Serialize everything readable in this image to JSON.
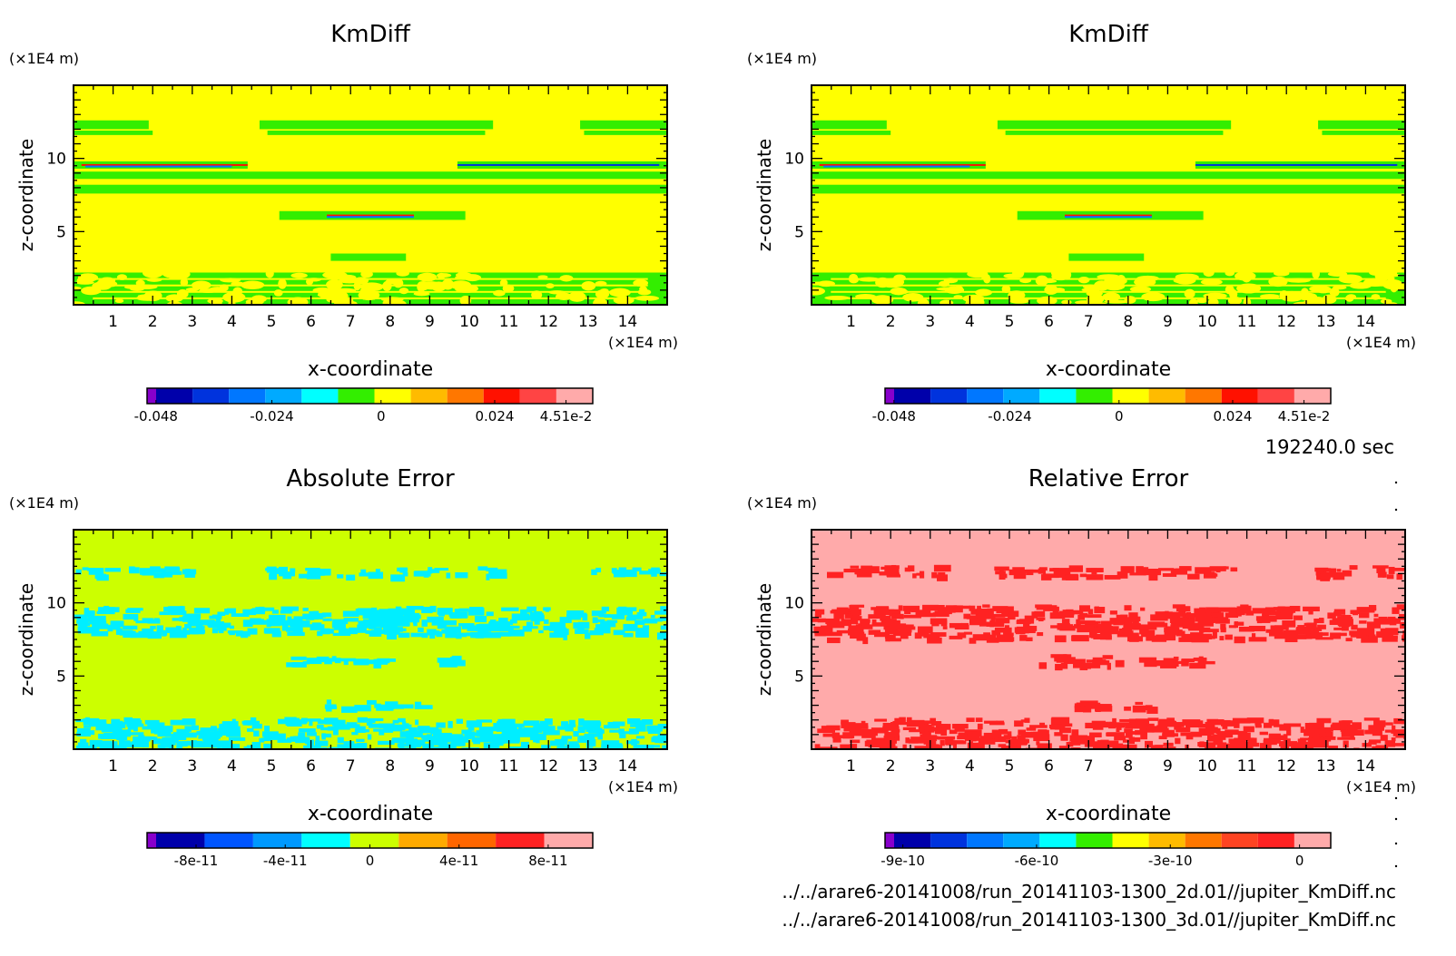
{
  "time_label": "192240.0 sec",
  "files": [
    "../../arare6-20141008/run_20141103-1300_2d.01//jupiter_KmDiff.nc",
    "../../arare6-20141008/run_20141103-1300_3d.01//jupiter_KmDiff.nc"
  ],
  "chart_data": [
    {
      "type": "heatmap",
      "title": "KmDiff",
      "xlabel": "x-coordinate",
      "ylabel": "z-coordinate",
      "x_unit": "(×1E4 m)",
      "y_unit": "(×1E4 m)",
      "xlim": [
        0,
        15
      ],
      "ylim": [
        0,
        15
      ],
      "x_ticks": [
        "1",
        "2",
        "3",
        "4",
        "5",
        "6",
        "7",
        "8",
        "9",
        "10",
        "11",
        "12",
        "13",
        "14"
      ],
      "y_ticks": [
        "5",
        "10"
      ],
      "background_color": "#ffff00",
      "pattern_color": "#33ee00",
      "colorbar": {
        "colors": [
          "#8800cc",
          "#0000aa",
          "#0033dd",
          "#0077ff",
          "#00aaff",
          "#00ffff",
          "#33ee00",
          "#ffff00",
          "#ffbb00",
          "#ff7700",
          "#ff1100",
          "#ff4444",
          "#ffaaaa"
        ],
        "tick_labels": [
          "-0.048",
          "-0.024",
          "0",
          "0.024",
          "4.51e-2"
        ]
      },
      "bands": [
        {
          "z": [
            12.0,
            12.6
          ],
          "x": [
            [
              0,
              1.9
            ],
            [
              4.7,
              10.6
            ],
            [
              12.8,
              15
            ]
          ]
        },
        {
          "z": [
            11.6,
            11.9
          ],
          "x": [
            [
              0,
              2.0
            ],
            [
              4.9,
              10.4
            ],
            [
              12.9,
              15
            ]
          ]
        },
        {
          "z": [
            9.3,
            9.8
          ],
          "x": [
            [
              0,
              4.4
            ],
            [
              9.7,
              15
            ]
          ]
        },
        {
          "z": [
            8.6,
            9.1
          ],
          "x": [
            [
              0,
              15
            ]
          ]
        },
        {
          "z": [
            7.6,
            8.2
          ],
          "x": [
            [
              0,
              15
            ]
          ]
        },
        {
          "z": [
            5.8,
            6.4
          ],
          "x": [
            [
              5.2,
              9.9
            ]
          ]
        },
        {
          "z": [
            3.0,
            3.5
          ],
          "x": [
            [
              6.5,
              8.4
            ]
          ]
        },
        {
          "z": [
            0,
            2.2
          ],
          "x": [
            [
              0,
              15
            ]
          ]
        }
      ]
    },
    {
      "type": "heatmap",
      "title": "KmDiff",
      "xlabel": "x-coordinate",
      "ylabel": "z-coordinate",
      "x_unit": "(×1E4 m)",
      "y_unit": "(×1E4 m)",
      "xlim": [
        0,
        15
      ],
      "ylim": [
        0,
        15
      ],
      "x_ticks": [
        "1",
        "2",
        "3",
        "4",
        "5",
        "6",
        "7",
        "8",
        "9",
        "10",
        "11",
        "12",
        "13",
        "14"
      ],
      "y_ticks": [
        "5",
        "10"
      ],
      "background_color": "#ffff00",
      "pattern_color": "#33ee00",
      "colorbar": {
        "colors": [
          "#8800cc",
          "#0000aa",
          "#0033dd",
          "#0077ff",
          "#00aaff",
          "#00ffff",
          "#33ee00",
          "#ffff00",
          "#ffbb00",
          "#ff7700",
          "#ff1100",
          "#ff4444",
          "#ffaaaa"
        ],
        "tick_labels": [
          "-0.048",
          "-0.024",
          "0",
          "0.024",
          "4.51e-2"
        ]
      },
      "bands": [
        {
          "z": [
            12.0,
            12.6
          ],
          "x": [
            [
              0,
              1.9
            ],
            [
              4.7,
              10.6
            ],
            [
              12.8,
              15
            ]
          ]
        },
        {
          "z": [
            11.6,
            11.9
          ],
          "x": [
            [
              0,
              2.0
            ],
            [
              4.9,
              10.4
            ],
            [
              12.9,
              15
            ]
          ]
        },
        {
          "z": [
            9.3,
            9.8
          ],
          "x": [
            [
              0,
              4.4
            ],
            [
              9.7,
              15
            ]
          ]
        },
        {
          "z": [
            8.6,
            9.1
          ],
          "x": [
            [
              0,
              15
            ]
          ]
        },
        {
          "z": [
            7.6,
            8.2
          ],
          "x": [
            [
              0,
              15
            ]
          ]
        },
        {
          "z": [
            5.8,
            6.4
          ],
          "x": [
            [
              5.2,
              9.9
            ]
          ]
        },
        {
          "z": [
            3.0,
            3.5
          ],
          "x": [
            [
              6.5,
              8.4
            ]
          ]
        },
        {
          "z": [
            0,
            2.2
          ],
          "x": [
            [
              0,
              15
            ]
          ]
        }
      ]
    },
    {
      "type": "heatmap",
      "title": "Absolute Error",
      "xlabel": "x-coordinate",
      "ylabel": "z-coordinate",
      "x_unit": "(×1E4 m)",
      "y_unit": "(×1E4 m)",
      "xlim": [
        0,
        15
      ],
      "ylim": [
        0,
        15
      ],
      "x_ticks": [
        "1",
        "2",
        "3",
        "4",
        "5",
        "6",
        "7",
        "8",
        "9",
        "10",
        "11",
        "12",
        "13",
        "14"
      ],
      "y_ticks": [
        "5",
        "10"
      ],
      "background_color": "#ccff00",
      "pattern_color": "#00eeff",
      "colorbar": {
        "colors": [
          "#8800cc",
          "#0000aa",
          "#0055ff",
          "#0099ff",
          "#00ffff",
          "#ccff00",
          "#ffaa00",
          "#ff6600",
          "#ff2222",
          "#ffaaaa"
        ],
        "tick_labels": [
          "-8e-11",
          "-4e-11",
          "0",
          "4e-11",
          "8e-11"
        ]
      },
      "bands": [
        {
          "z": [
            11.9,
            12.5
          ],
          "x": [
            [
              0,
              2.9
            ],
            [
              4.8,
              10.6
            ],
            [
              12.9,
              15
            ]
          ]
        },
        {
          "z": [
            7.9,
            9.8
          ],
          "x": [
            [
              0,
              15
            ]
          ]
        },
        {
          "z": [
            5.9,
            6.4
          ],
          "x": [
            [
              5.2,
              9.8
            ]
          ]
        },
        {
          "z": [
            2.9,
            3.4
          ],
          "x": [
            [
              6.3,
              8.7
            ]
          ]
        },
        {
          "z": [
            0,
            2.2
          ],
          "x": [
            [
              0,
              15
            ]
          ]
        }
      ]
    },
    {
      "type": "heatmap",
      "title": "Relative Error",
      "xlabel": "x-coordinate",
      "ylabel": "z-coordinate",
      "x_unit": "(×1E4 m)",
      "y_unit": "(×1E4 m)",
      "xlim": [
        0,
        15
      ],
      "ylim": [
        0,
        15
      ],
      "x_ticks": [
        "1",
        "2",
        "3",
        "4",
        "5",
        "6",
        "7",
        "8",
        "9",
        "10",
        "11",
        "12",
        "13",
        "14"
      ],
      "y_ticks": [
        "5",
        "10"
      ],
      "background_color": "#ffaaaa",
      "pattern_color": "#ff2222",
      "colorbar": {
        "colors": [
          "#8800cc",
          "#0000aa",
          "#0033dd",
          "#0077ff",
          "#00aaff",
          "#00ffff",
          "#33ee00",
          "#ffff00",
          "#ffbb00",
          "#ff7700",
          "#ff4422",
          "#ff2222",
          "#ffaaaa"
        ],
        "tick_labels": [
          "-9e-10",
          "-6e-10",
          "-3e-10",
          "0"
        ]
      },
      "bands": [
        {
          "z": [
            11.9,
            12.6
          ],
          "x": [
            [
              0,
              3.2
            ],
            [
              4.6,
              10.6
            ],
            [
              12.5,
              15
            ]
          ]
        },
        {
          "z": [
            7.6,
            9.9
          ],
          "x": [
            [
              0,
              15
            ]
          ]
        },
        {
          "z": [
            5.8,
            6.5
          ],
          "x": [
            [
              5.5,
              9.9
            ]
          ]
        },
        {
          "z": [
            2.9,
            3.4
          ],
          "x": [
            [
              6.3,
              8.7
            ]
          ]
        },
        {
          "z": [
            0,
            2.2
          ],
          "x": [
            [
              0,
              15
            ]
          ]
        }
      ]
    }
  ]
}
